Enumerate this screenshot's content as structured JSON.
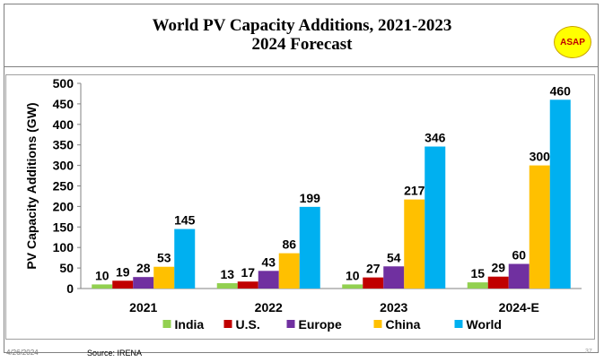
{
  "slide": {
    "title_line1": "World PV Capacity Additions, 2021-2023",
    "title_line2": "2024 Forecast",
    "badge": "ASAP",
    "footer_date": "4/26/2024",
    "footer_source": "Source: IRENA",
    "page_number": "37"
  },
  "chart_data": {
    "type": "bar",
    "title": "",
    "xlabel": "",
    "ylabel": "PV Capacity Additions (GW)",
    "ylim": [
      0,
      500
    ],
    "yticks": [
      0,
      50,
      100,
      150,
      200,
      250,
      300,
      350,
      400,
      450,
      500
    ],
    "categories": [
      "2021",
      "2022",
      "2023",
      "2024-E"
    ],
    "series": [
      {
        "name": "India",
        "color": "#92d050",
        "values": [
          10,
          13,
          10,
          15
        ]
      },
      {
        "name": "U.S.",
        "color": "#c00000",
        "values": [
          19,
          17,
          27,
          29
        ]
      },
      {
        "name": "Europe",
        "color": "#7030a0",
        "values": [
          28,
          43,
          54,
          60
        ]
      },
      {
        "name": "China",
        "color": "#ffc000",
        "values": [
          53,
          86,
          217,
          300
        ]
      },
      {
        "name": "World",
        "color": "#00b0f0",
        "values": [
          145,
          199,
          346,
          460
        ]
      }
    ],
    "legend_position": "bottom",
    "grid": false,
    "data_labels": true
  }
}
